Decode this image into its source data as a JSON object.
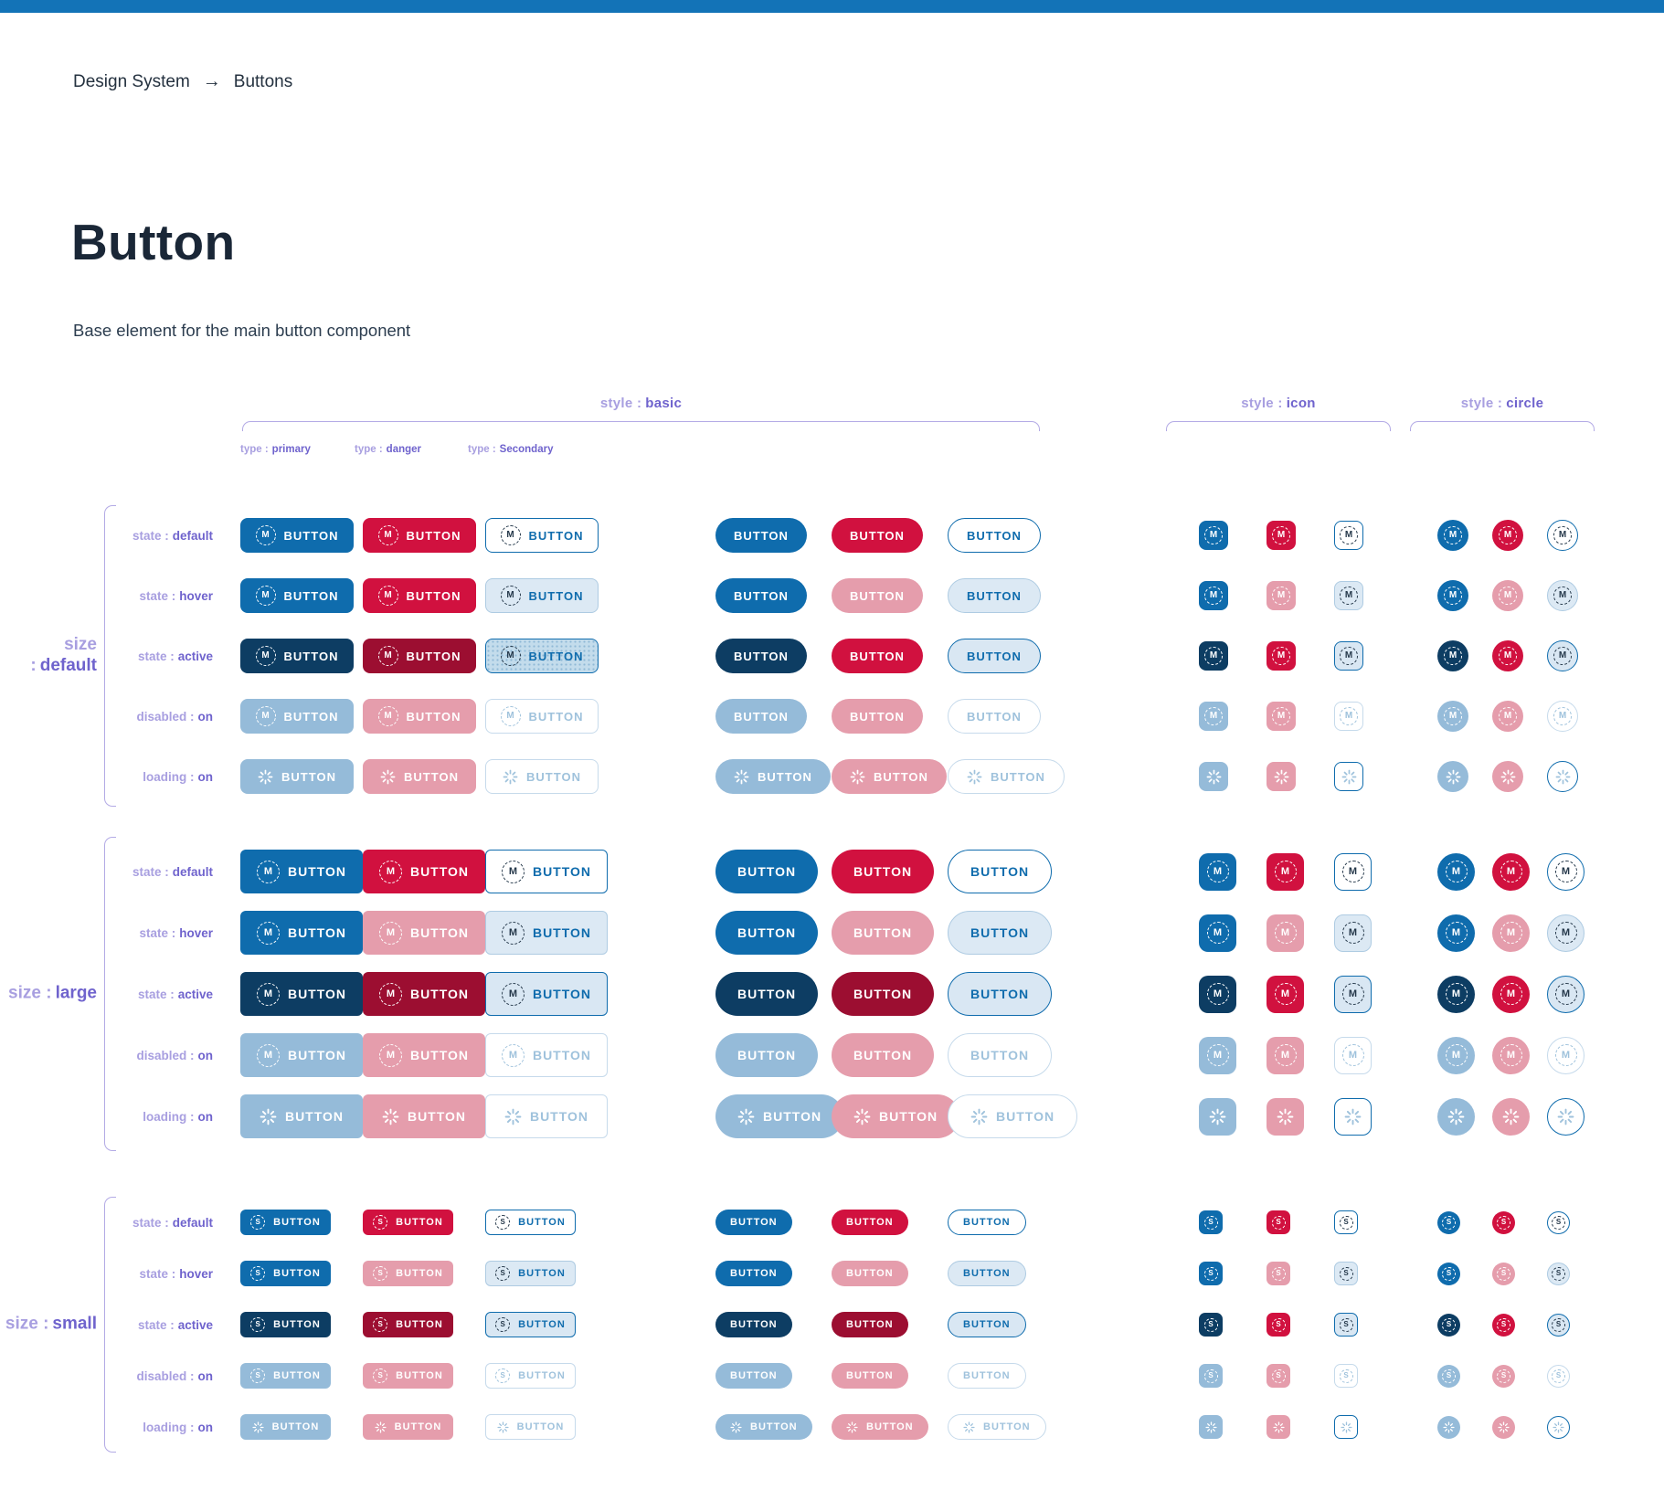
{
  "breadcrumb": {
    "root": "Design System",
    "separator": "→",
    "current": "Buttons"
  },
  "header": {
    "title": "Button",
    "subtitle": "Base element for the main button component"
  },
  "legend": {
    "style_basic": {
      "key": "style :",
      "value": "basic"
    },
    "style_icon": {
      "key": "style :",
      "value": "icon"
    },
    "style_circle": {
      "key": "style :",
      "value": "circle"
    },
    "types": [
      {
        "key": "type :",
        "value": "primary"
      },
      {
        "key": "type :",
        "value": "danger"
      },
      {
        "key": "type :",
        "value": "Secondary"
      }
    ]
  },
  "button_label": "BUTTON",
  "icons": {
    "breadcrumb_arrow": "→",
    "dotted_circle_medium_letter": "M",
    "dotted_circle_small_letter": "S",
    "loading_spinner": "radial-tick spinner"
  },
  "colors": {
    "topbar": "#1373b7",
    "primary": "#0f6cad",
    "primary_active": "#0d3d63",
    "primary_muted": "#95bbd9",
    "danger": "#d1113f",
    "danger_hover": "#e59dac",
    "danger_active": "#9c0e31",
    "secondary_hover_bg": "#dce9f4",
    "secondary_active_bg": "#d9e7f3",
    "secondary_border_light": "#c6daeb",
    "secondary_text_muted": "#9fc2dc",
    "accent_purple": "#6f63cd",
    "accent_purple_light": "#a89fe0",
    "text_dark": "#1a2737"
  },
  "sizes": [
    {
      "name": "default",
      "label": {
        "key": "size :",
        "value": "default"
      },
      "icon_letter": "M",
      "rows": [
        {
          "label": {
            "key": "state :",
            "value": "default"
          },
          "content": "icon",
          "basic_icon": [
            "p",
            "d",
            "s"
          ],
          "basic_plain": [
            "p",
            "d",
            "s"
          ],
          "icon_square": [
            "p",
            "d",
            "s"
          ],
          "circle": [
            "p",
            "d",
            "s"
          ]
        },
        {
          "label": {
            "key": "state :",
            "value": "hover"
          },
          "content": "icon",
          "basic_icon": [
            "p",
            "d",
            "sh"
          ],
          "basic_plain": [
            "p",
            "dp",
            "sh"
          ],
          "icon_square": [
            "p",
            "dp",
            "sh"
          ],
          "circle": [
            "p",
            "dp",
            "sh"
          ]
        },
        {
          "label": {
            "key": "state :",
            "value": "active"
          },
          "content": "icon",
          "basic_icon": [
            "pa",
            "da",
            "sat"
          ],
          "basic_plain": [
            "pa",
            "d",
            "sa"
          ],
          "icon_square": [
            "pa",
            "d",
            "sa"
          ],
          "circle": [
            "pa",
            "d",
            "sa"
          ]
        },
        {
          "label": {
            "key": "disabled :",
            "value": "on"
          },
          "content": "icon",
          "basic_icon": [
            "pm",
            "dp",
            "sd"
          ],
          "basic_plain": [
            "pm",
            "dp",
            "sd"
          ],
          "icon_square": [
            "pm",
            "dp",
            "sd"
          ],
          "circle": [
            "pm",
            "dp",
            "sd"
          ]
        },
        {
          "label": {
            "key": "loading :",
            "value": "on"
          },
          "content": "spinner",
          "basic_icon": [
            "pm",
            "dp",
            "sl"
          ],
          "basic_plain": [
            "pm",
            "dp",
            "sl"
          ],
          "icon_square": [
            "pm",
            "dp",
            "slb"
          ],
          "circle": [
            "pm",
            "dp",
            "slb"
          ]
        }
      ]
    },
    {
      "name": "large",
      "label": {
        "key": "size :",
        "value": "large"
      },
      "icon_letter": "M",
      "rows": [
        {
          "label": {
            "key": "state :",
            "value": "default"
          },
          "content": "icon",
          "basic_icon": [
            "p",
            "d",
            "s"
          ],
          "basic_plain": [
            "p",
            "d",
            "s"
          ],
          "icon_square": [
            "p",
            "d",
            "s"
          ],
          "circle": [
            "p",
            "d",
            "s"
          ]
        },
        {
          "label": {
            "key": "state :",
            "value": "hover"
          },
          "content": "icon",
          "basic_icon": [
            "p",
            "dp",
            "sh"
          ],
          "basic_plain": [
            "p",
            "dp",
            "sh"
          ],
          "icon_square": [
            "p",
            "dp",
            "sh"
          ],
          "circle": [
            "p",
            "dp",
            "sh"
          ]
        },
        {
          "label": {
            "key": "state :",
            "value": "active"
          },
          "content": "icon",
          "basic_icon": [
            "pa",
            "da",
            "sa"
          ],
          "basic_plain": [
            "pa",
            "da",
            "sa"
          ],
          "icon_square": [
            "pa",
            "d",
            "sa"
          ],
          "circle": [
            "pa",
            "d",
            "sa"
          ]
        },
        {
          "label": {
            "key": "disabled :",
            "value": "on"
          },
          "content": "icon",
          "basic_icon": [
            "pm",
            "dp",
            "sd"
          ],
          "basic_plain": [
            "pm",
            "dp",
            "sd"
          ],
          "icon_square": [
            "pm",
            "dp",
            "sd"
          ],
          "circle": [
            "pm",
            "dp",
            "sd"
          ]
        },
        {
          "label": {
            "key": "loading :",
            "value": "on"
          },
          "content": "spinner",
          "basic_icon": [
            "pm",
            "dp",
            "sl"
          ],
          "basic_plain": [
            "pm",
            "dp",
            "sl"
          ],
          "icon_square": [
            "pm",
            "dp",
            "slb"
          ],
          "circle": [
            "pm",
            "dp",
            "slb"
          ]
        }
      ]
    },
    {
      "name": "small",
      "label": {
        "key": "size :",
        "value": "small"
      },
      "icon_letter": "S",
      "rows": [
        {
          "label": {
            "key": "state :",
            "value": "default"
          },
          "content": "icon",
          "basic_icon": [
            "p",
            "d",
            "s"
          ],
          "basic_plain": [
            "p",
            "d",
            "s"
          ],
          "icon_square": [
            "p",
            "d",
            "s"
          ],
          "circle": [
            "p",
            "d",
            "s"
          ]
        },
        {
          "label": {
            "key": "state :",
            "value": "hover"
          },
          "content": "icon",
          "basic_icon": [
            "p",
            "dp",
            "sh"
          ],
          "basic_plain": [
            "p",
            "dp",
            "sh"
          ],
          "icon_square": [
            "p",
            "dp",
            "sh"
          ],
          "circle": [
            "p",
            "dp",
            "sh"
          ]
        },
        {
          "label": {
            "key": "state :",
            "value": "active"
          },
          "content": "icon",
          "basic_icon": [
            "pa",
            "da",
            "sa"
          ],
          "basic_plain": [
            "pa",
            "da",
            "sa"
          ],
          "icon_square": [
            "pa",
            "d",
            "sa"
          ],
          "circle": [
            "pa",
            "d",
            "sa"
          ]
        },
        {
          "label": {
            "key": "disabled :",
            "value": "on"
          },
          "content": "icon",
          "basic_icon": [
            "pm",
            "dp",
            "sd"
          ],
          "basic_plain": [
            "pm",
            "dp",
            "sd"
          ],
          "icon_square": [
            "pm",
            "dp",
            "sd"
          ],
          "circle": [
            "pm",
            "dp",
            "sd"
          ]
        },
        {
          "label": {
            "key": "loading :",
            "value": "on"
          },
          "content": "spinner",
          "basic_icon": [
            "pm",
            "dp",
            "sl"
          ],
          "basic_plain": [
            "pm",
            "dp",
            "sl"
          ],
          "icon_square": [
            "pm",
            "dp",
            "slb"
          ],
          "circle": [
            "pm",
            "dp",
            "slb"
          ]
        }
      ]
    }
  ]
}
